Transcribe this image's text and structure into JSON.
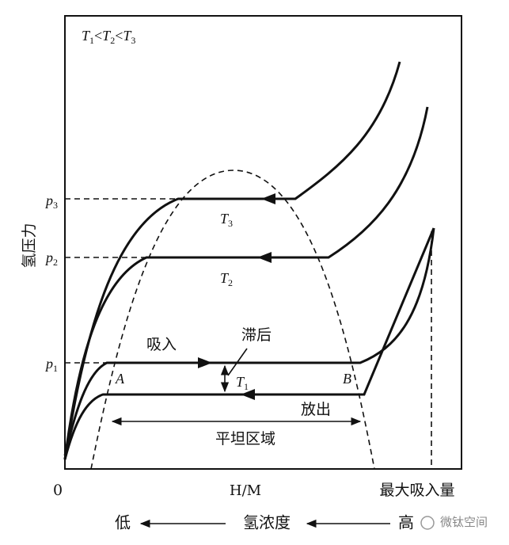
{
  "temperature_order": [
    "T",
    "1",
    "<",
    "T",
    "2",
    "<",
    "T",
    "3"
  ],
  "y_axis_label": "氢压力",
  "pressures": [
    {
      "base": "p",
      "sub": "1"
    },
    {
      "base": "p",
      "sub": "2"
    },
    {
      "base": "p",
      "sub": "3"
    }
  ],
  "isotherms": [
    {
      "base": "T",
      "sub": "1"
    },
    {
      "base": "T",
      "sub": "2"
    },
    {
      "base": "T",
      "sub": "3"
    }
  ],
  "labels": {
    "absorb": "吸入",
    "hysteresis": "滞后",
    "point_a": "A",
    "point_b": "B",
    "desorb": "放出",
    "flat_region": "平坦区域"
  },
  "x_axis": {
    "origin": "0",
    "middle": "H/M",
    "max": "最大吸入量"
  },
  "concentration_axis": {
    "low": "低",
    "label": "氢浓度",
    "high": "高"
  },
  "watermark": "微钛空间"
}
